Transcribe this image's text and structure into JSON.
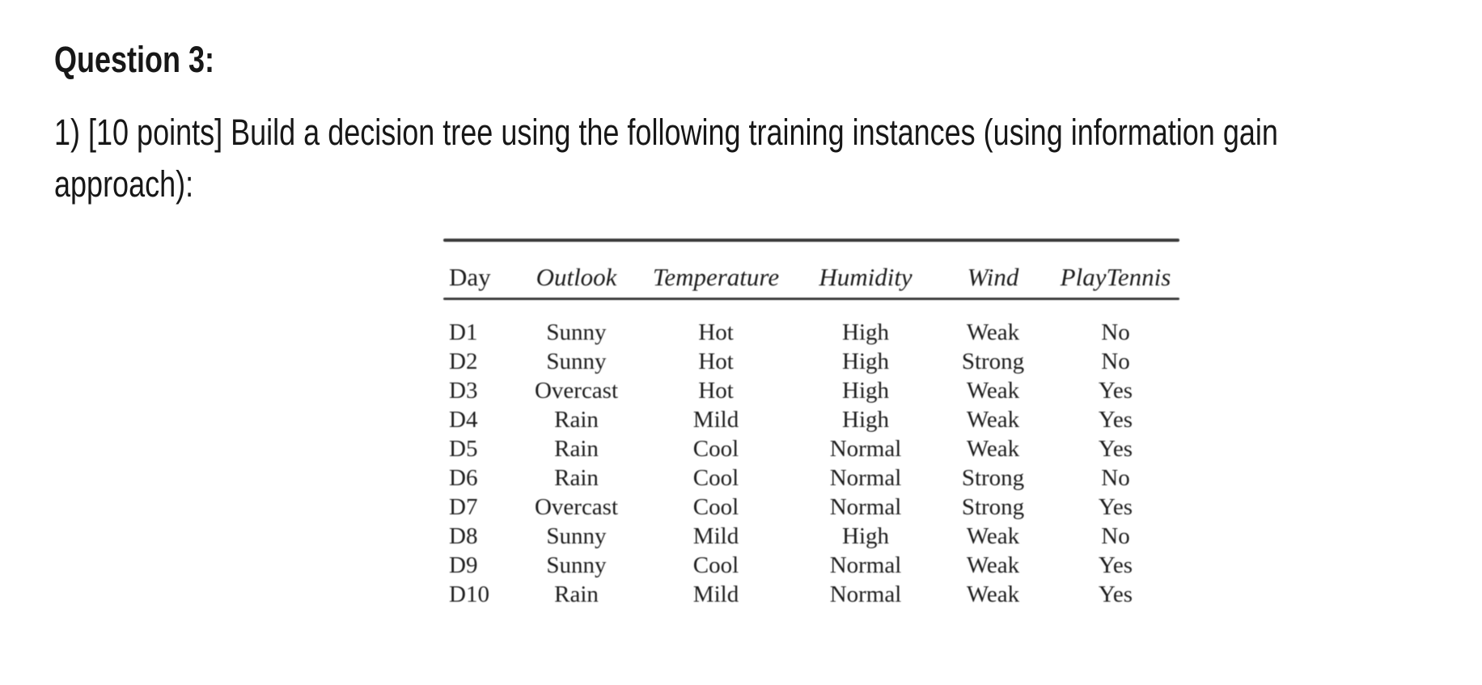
{
  "title": "Question 3:",
  "question": {
    "lines": [
      "1) [10 points] Build a decision tree using the following training instances (using information gain",
      "approach):"
    ]
  },
  "table": {
    "columns": [
      "Day",
      "Outlook",
      "Temperature",
      "Humidity",
      "Wind",
      "PlayTennis"
    ],
    "rows": [
      [
        "D1",
        "Sunny",
        "Hot",
        "High",
        "Weak",
        "No"
      ],
      [
        "D2",
        "Sunny",
        "Hot",
        "High",
        "Strong",
        "No"
      ],
      [
        "D3",
        "Overcast",
        "Hot",
        "High",
        "Weak",
        "Yes"
      ],
      [
        "D4",
        "Rain",
        "Mild",
        "High",
        "Weak",
        "Yes"
      ],
      [
        "D5",
        "Rain",
        "Cool",
        "Normal",
        "Weak",
        "Yes"
      ],
      [
        "D6",
        "Rain",
        "Cool",
        "Normal",
        "Strong",
        "No"
      ],
      [
        "D7",
        "Overcast",
        "Cool",
        "Normal",
        "Strong",
        "Yes"
      ],
      [
        "D8",
        "Sunny",
        "Mild",
        "High",
        "Weak",
        "No"
      ],
      [
        "D9",
        "Sunny",
        "Cool",
        "Normal",
        "Weak",
        "Yes"
      ],
      [
        "D10",
        "Rain",
        "Mild",
        "Normal",
        "Weak",
        "Yes"
      ]
    ]
  },
  "colors": {
    "text": "#171717",
    "table_text": "#1f1f1f",
    "rule": "#3c3c3c",
    "background": "#ffffff"
  }
}
